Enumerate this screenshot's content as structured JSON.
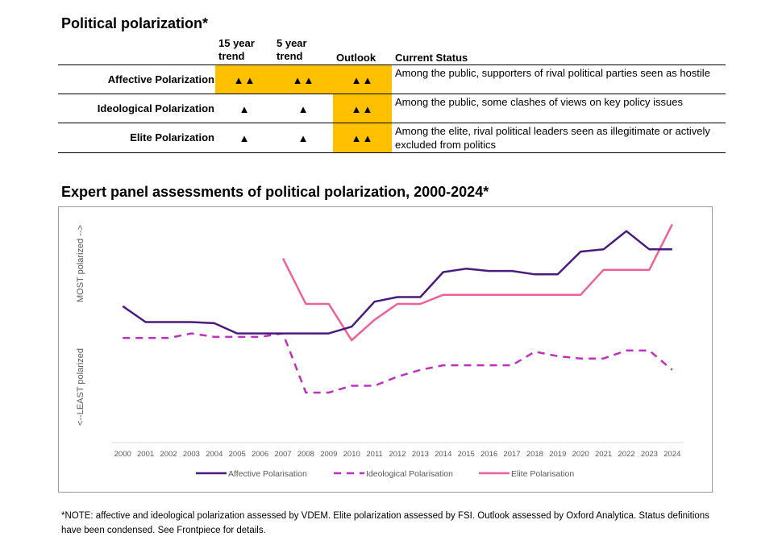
{
  "table_title": "Political polarization*",
  "headers": {
    "trend15": [
      "15 year",
      "trend"
    ],
    "trend5": [
      "5 year",
      "trend"
    ],
    "outlook": "Outlook",
    "status": "Current Status"
  },
  "rows": [
    {
      "label": "Affective Polarization",
      "trend15": "▲▲",
      "trend5": "▲▲",
      "outlook": "▲▲",
      "highlight": [
        true,
        true,
        true
      ],
      "status": "Among the public, supporters of rival political parties seen as hostile"
    },
    {
      "label": "Ideological Polarization",
      "trend15": "▲",
      "trend5": "▲",
      "outlook": "▲▲",
      "highlight": [
        false,
        false,
        true
      ],
      "status": "Among the public, some clashes of views on key policy issues"
    },
    {
      "label": "Elite Polarization",
      "trend15": "▲",
      "trend5": "▲",
      "outlook": "▲▲",
      "highlight": [
        false,
        false,
        true
      ],
      "status": "Among the elite, rival political leaders seen as illegitimate or actively excluded from politics"
    }
  ],
  "highlight_color": "#ffc000",
  "chart_title": "Expert panel assessments of political polarization, 2000-2024*",
  "note": "*NOTE: affective and ideological polarization assessed by VDEM. Elite polarization assessed by FSI. Outlook assessed by Oxford Analytica. Status definitions have been condensed. See Frontpiece for details.",
  "chart_data": {
    "type": "line",
    "x": [
      2000,
      2001,
      2002,
      2003,
      2004,
      2005,
      2006,
      2007,
      2008,
      2009,
      2010,
      2011,
      2012,
      2013,
      2014,
      2015,
      2016,
      2017,
      2018,
      2019,
      2020,
      2021,
      2022,
      2023,
      2024
    ],
    "ylim": [
      0,
      10
    ],
    "ylabel_top": "MOST polarized -->",
    "ylabel_bottom": "<--LEAST polarized",
    "y_ticks_shown": false,
    "grid": false,
    "legend_position": "bottom",
    "series": [
      {
        "name": "Affective Polarisation",
        "color": "#4b1a7e",
        "dash": "solid",
        "values": [
          6.0,
          5.3,
          5.3,
          5.3,
          5.25,
          4.8,
          4.8,
          4.8,
          4.8,
          4.8,
          5.1,
          6.2,
          6.4,
          6.4,
          7.5,
          7.65,
          7.55,
          7.55,
          7.4,
          7.4,
          8.4,
          8.5,
          9.3,
          8.5,
          8.5
        ]
      },
      {
        "name": "Ideological Polarisation",
        "color": "#c030c0",
        "dash": "dashed",
        "values": [
          4.6,
          4.6,
          4.6,
          4.8,
          4.65,
          4.65,
          4.65,
          4.8,
          2.2,
          2.2,
          2.5,
          2.5,
          2.9,
          3.2,
          3.4,
          3.4,
          3.4,
          3.4,
          4.0,
          3.8,
          3.7,
          3.7,
          4.05,
          4.05,
          3.2
        ]
      },
      {
        "name": "Elite Polarization",
        "color": "#f0609a",
        "dash": "solid",
        "values": [
          null,
          null,
          null,
          null,
          null,
          null,
          null,
          8.1,
          6.1,
          6.1,
          4.5,
          5.4,
          6.1,
          6.1,
          6.5,
          6.5,
          6.5,
          6.5,
          6.5,
          6.5,
          6.5,
          7.6,
          7.6,
          7.6,
          9.6
        ]
      }
    ],
    "legend_labels": [
      "Affective Polarisation",
      "Ideological Polarisation",
      "Elite Polarisation"
    ]
  }
}
